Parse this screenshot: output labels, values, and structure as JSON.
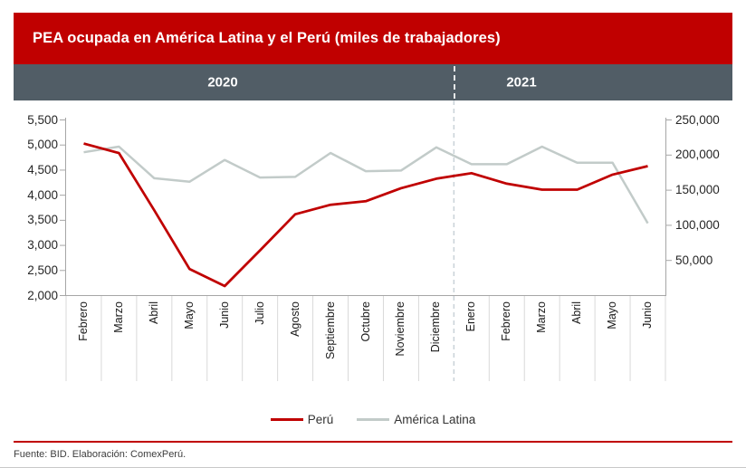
{
  "header": {
    "title": "PEA ocupada en América Latina y el Perú (miles de trabajadores)",
    "background": "#C00000"
  },
  "period_band": {
    "labels": [
      "2020",
      "2021"
    ],
    "background": "#515D66"
  },
  "legend": [
    {
      "label": "Perú",
      "color": "#C00000"
    },
    {
      "label": "América Latina",
      "color": "#C2CBC9"
    }
  ],
  "footer": {
    "source": "Fuente: BID. Elaboración: ComexPerú.",
    "rule_color": "#C00000"
  },
  "chart_data": {
    "type": "line",
    "title": "PEA ocupada en América Latina y el Perú (miles de trabajadores)",
    "categories": [
      "Febrero",
      "Marzo",
      "Abril",
      "Mayo",
      "Junio",
      "Julio",
      "Agosto",
      "Septiembre",
      "Octubre",
      "Noviembre",
      "Diciembre",
      "Enero",
      "Febrero",
      "Marzo",
      "Abril",
      "Mayo",
      "Junio"
    ],
    "year_groups": [
      {
        "label": "2020",
        "count": 11
      },
      {
        "label": "2021",
        "count": 6
      }
    ],
    "series": [
      {
        "name": "Perú",
        "axis": "left",
        "color": "#C00000",
        "values": [
          5030,
          4840,
          3700,
          2530,
          2190,
          2900,
          3620,
          3810,
          3880,
          4140,
          4330,
          4440,
          4230,
          4110,
          4110,
          4410,
          4580
        ]
      },
      {
        "name": "América Latina",
        "axis": "right",
        "color": "#C2CBC9",
        "values": [
          204000,
          212000,
          167000,
          162000,
          193000,
          168000,
          169000,
          203000,
          177000,
          178000,
          211000,
          187000,
          187000,
          212000,
          189000,
          189000,
          103000
        ]
      }
    ],
    "left_axis": {
      "min": 2000,
      "max": 5500,
      "step": 500,
      "labels": [
        "2,000",
        "2,500",
        "3,000",
        "3,500",
        "4,000",
        "4,500",
        "5,000",
        "5,500"
      ]
    },
    "right_axis": {
      "min": 0,
      "max": 250000,
      "step": 50000,
      "labels": [
        "50,000",
        "100,000",
        "150,000",
        "200,000",
        "250,000"
      ],
      "labels_from": 50000
    },
    "grid": false,
    "legend_position": "bottom"
  }
}
